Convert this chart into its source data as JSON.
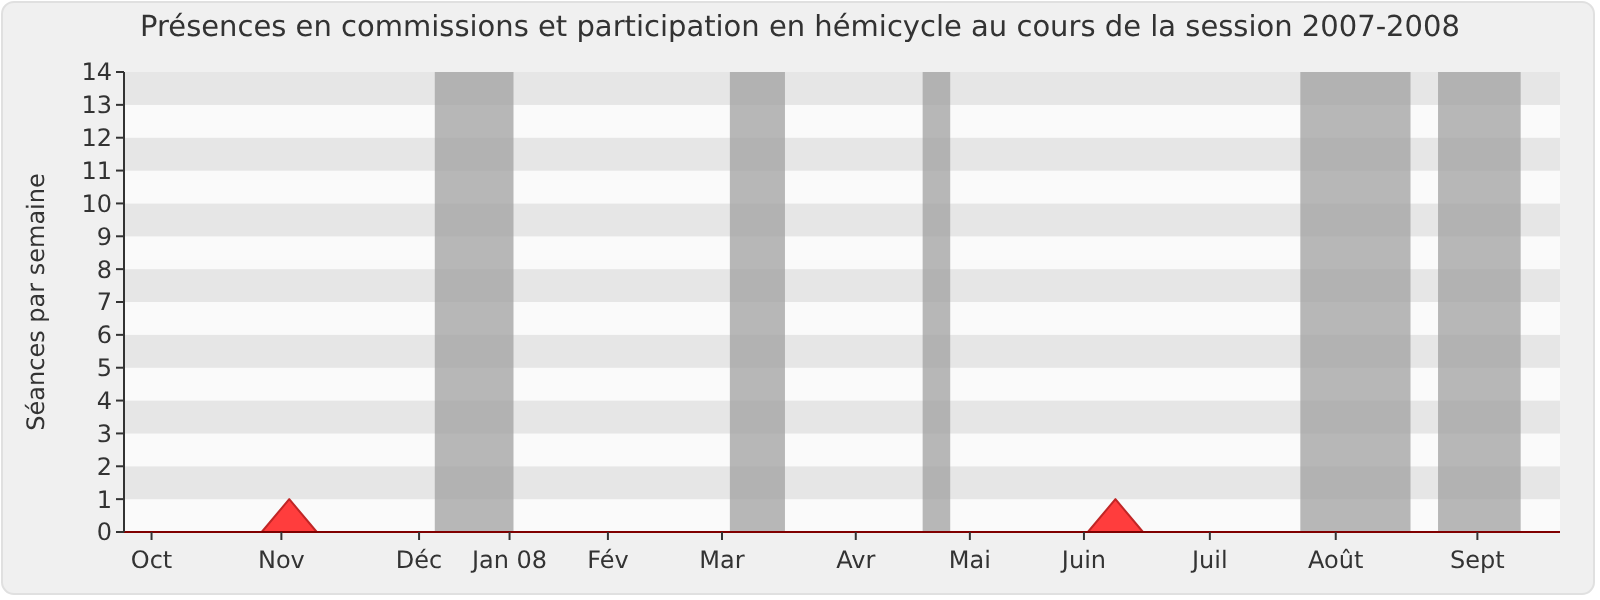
{
  "chart_data": {
    "type": "area",
    "title": "Présences en commissions et participation en hémicycle au cours de la session 2007-2008",
    "ylabel": "Séances par semaine",
    "x": [
      "2007-10-01",
      "2007-11-05",
      "2007-11-12",
      "2007-11-19",
      "2008-06-02",
      "2008-06-09",
      "2008-06-16",
      "2008-09-29"
    ],
    "series": [
      {
        "color": "#ff3333",
        "values": [
          0,
          0,
          1,
          0,
          0,
          1,
          0,
          0
        ]
      }
    ],
    "xlim": [
      "2007-10-01",
      "2008-09-30"
    ],
    "xticks": [
      {
        "value": "2007-10-08",
        "label": "Oct"
      },
      {
        "value": "2007-11-10",
        "label": "Nov"
      },
      {
        "value": "2007-12-15",
        "label": "Déc"
      },
      {
        "value": "2008-01-07",
        "label": "Jan 08"
      },
      {
        "value": "2008-02-01",
        "label": "Fév"
      },
      {
        "value": "2008-03-01",
        "label": "Mar"
      },
      {
        "value": "2008-04-04",
        "label": "Avr"
      },
      {
        "value": "2008-05-03",
        "label": "Mai"
      },
      {
        "value": "2008-06-01",
        "label": "Juin"
      },
      {
        "value": "2008-07-03",
        "label": "Juil"
      },
      {
        "value": "2008-08-04",
        "label": "Août"
      },
      {
        "value": "2008-09-09",
        "label": "Sept"
      }
    ],
    "ylim": [
      0,
      14
    ],
    "yticks": [
      0,
      1,
      2,
      3,
      4,
      5,
      6,
      7,
      8,
      9,
      10,
      11,
      12,
      13,
      14
    ],
    "bands": [
      {
        "axis": "x",
        "from": "2007-12-19",
        "to": "2008-01-08",
        "color": "#a0a0a0"
      },
      {
        "axis": "x",
        "from": "2008-03-03",
        "to": "2008-03-17",
        "color": "#a0a0a0"
      },
      {
        "axis": "x",
        "from": "2008-04-21",
        "to": "2008-04-28",
        "color": "#a0a0a0"
      },
      {
        "axis": "x",
        "from": "2008-07-26",
        "to": "2008-08-23",
        "color": "#a0a0a0"
      },
      {
        "axis": "x",
        "from": "2008-08-30",
        "to": "2008-09-20",
        "color": "#a0a0a0"
      }
    ]
  }
}
